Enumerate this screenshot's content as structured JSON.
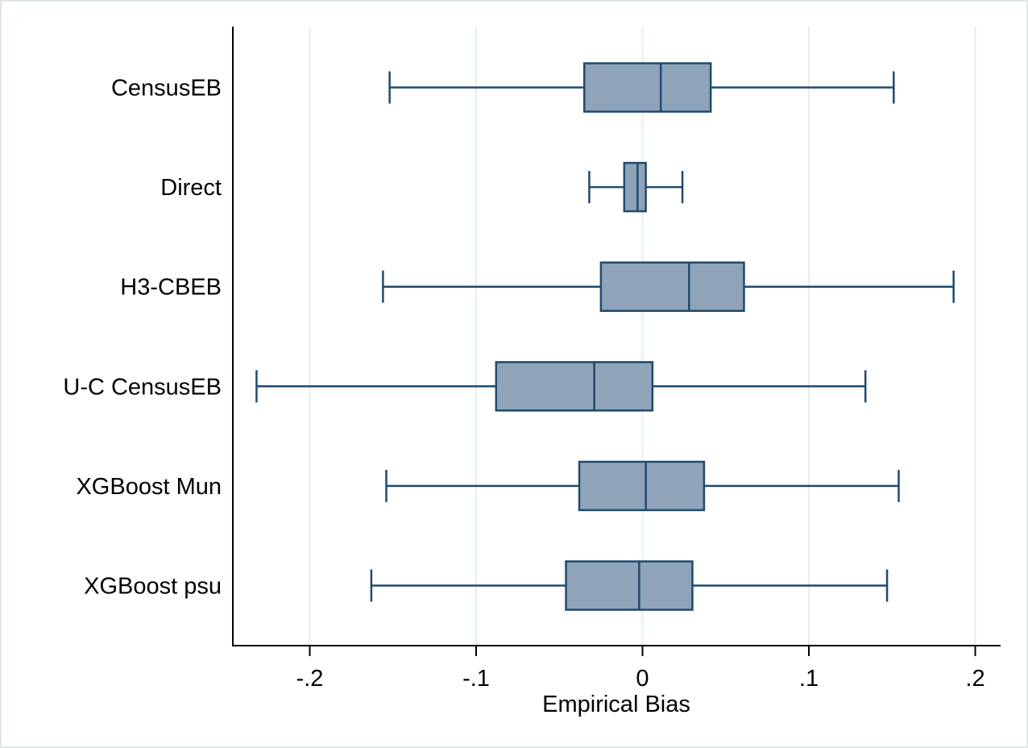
{
  "chart_data": {
    "type": "boxplot",
    "orientation": "horizontal",
    "title": "",
    "xlabel": "Empirical Bias",
    "ylabel": "",
    "xlim": [
      -0.25,
      0.22
    ],
    "xticks": [
      -0.2,
      -0.1,
      0,
      0.1,
      0.2
    ],
    "xtick_labels": [
      "-.2",
      "-.1",
      "0",
      ".1",
      ".2"
    ],
    "grid": "vertical",
    "colors": {
      "box_fill": "#8fa4b8",
      "stroke": "#1f4a6e",
      "grid": "#e4efef",
      "axis": "#000000"
    },
    "categories": [
      "CensusEB",
      "Direct",
      "H3-CBEB",
      "U-C CensusEB",
      "XGBoost Mun",
      "XGBoost psu"
    ],
    "boxes": [
      {
        "label": "CensusEB",
        "whisker_low": -0.152,
        "q1": -0.035,
        "median": 0.011,
        "q3": 0.041,
        "whisker_high": 0.151
      },
      {
        "label": "Direct",
        "whisker_low": -0.032,
        "q1": -0.011,
        "median": -0.003,
        "q3": 0.002,
        "whisker_high": 0.024
      },
      {
        "label": "H3-CBEB",
        "whisker_low": -0.156,
        "q1": -0.025,
        "median": 0.028,
        "q3": 0.061,
        "whisker_high": 0.187
      },
      {
        "label": "U-C CensusEB",
        "whisker_low": -0.232,
        "q1": -0.088,
        "median": -0.029,
        "q3": 0.006,
        "whisker_high": 0.134
      },
      {
        "label": "XGBoost Mun",
        "whisker_low": -0.154,
        "q1": -0.038,
        "median": 0.002,
        "q3": 0.037,
        "whisker_high": 0.154
      },
      {
        "label": "XGBoost psu",
        "whisker_low": -0.163,
        "q1": -0.046,
        "median": -0.002,
        "q3": 0.03,
        "whisker_high": 0.147
      }
    ]
  }
}
